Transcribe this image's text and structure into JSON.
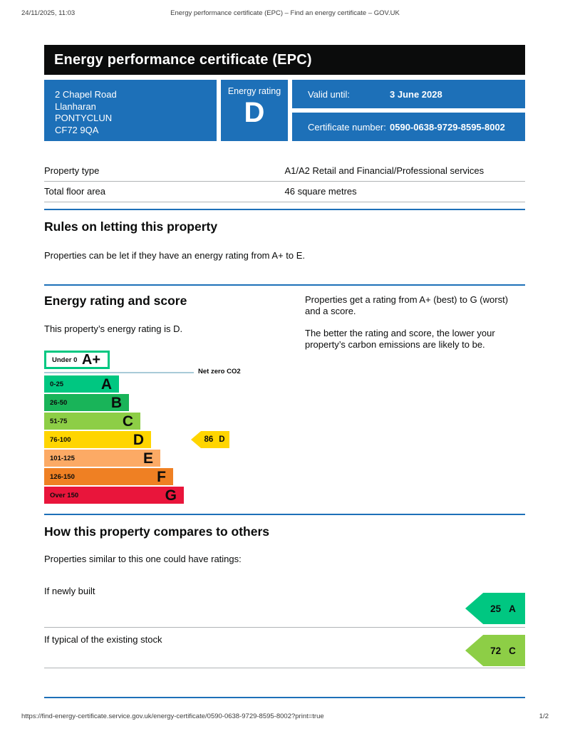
{
  "page": {
    "print_header": {
      "datetime": "24/11/2025, 11:03",
      "title": "Energy performance certificate (EPC) – Find an energy certificate – GOV.UK"
    },
    "print_footer": {
      "url": "https://find-energy-certificate.service.gov.uk/energy-certificate/0590-0638-9729-8595-8002?print=true",
      "page_number": "1/2"
    }
  },
  "banner": {
    "title": "Energy performance certificate (EPC)"
  },
  "summary": {
    "address_lines": [
      "2 Chapel Road",
      "Llanharan",
      "PONTYCLUN",
      "CF72 9QA"
    ],
    "energy_rating_label": "Energy rating",
    "energy_rating": "D",
    "valid_until_label": "Valid until:",
    "valid_until": "3 June 2028",
    "certificate_number_label": "Certificate number:",
    "certificate_number": "0590-0638-9729-8595-8002"
  },
  "property_details": {
    "rows": [
      {
        "label": "Property type",
        "value": "A1/A2 Retail and Financial/Professional services"
      },
      {
        "label": "Total floor area",
        "value": "46 square metres"
      }
    ]
  },
  "rules_section": {
    "heading": "Rules on letting this property",
    "body": "Properties can be let if they have an energy rating from A+ to E."
  },
  "rating_section": {
    "heading": "Energy rating and score",
    "property_rating_text": "This property’s energy rating is D.",
    "info_paragraphs": [
      "Properties get a rating from A+ (best) to G (worst) and a score.",
      "The better the rating and score, the lower your property’s carbon emissions are likely to be."
    ]
  },
  "chart_data": {
    "type": "bar",
    "subtype": "epc-energy-rating-scale",
    "title": "Energy rating and score",
    "net_zero_label": "Net zero CO2",
    "bands": [
      {
        "letter": "A+",
        "range": "Under 0",
        "color": "#ffffff",
        "border": "#00c781"
      },
      {
        "letter": "A",
        "range": "0-25",
        "color": "#00c781"
      },
      {
        "letter": "B",
        "range": "26-50",
        "color": "#19b459"
      },
      {
        "letter": "C",
        "range": "51-75",
        "color": "#8dce46"
      },
      {
        "letter": "D",
        "range": "76-100",
        "color": "#ffd500"
      },
      {
        "letter": "E",
        "range": "101-125",
        "color": "#fcaa65"
      },
      {
        "letter": "F",
        "range": "126-150",
        "color": "#ef8023"
      },
      {
        "letter": "G",
        "range": "Over 150",
        "color": "#e9153b"
      }
    ],
    "current": {
      "score": "86",
      "rating": "D",
      "color": "#ffd500"
    }
  },
  "compare_section": {
    "heading": "How this property compares to others",
    "intro": "Properties similar to this one could have ratings:",
    "rows": [
      {
        "label": "If newly built",
        "score": "25",
        "rating": "A",
        "color": "#00c781"
      },
      {
        "label": "If typical of the existing stock",
        "score": "72",
        "rating": "C",
        "color": "#8dce46"
      }
    ]
  },
  "colors": {
    "govuk_blue": "#1d70b8",
    "banner_background": "#0b0c0c",
    "divider_gray": "#b1b4b6",
    "net_zero_line": "#a8cbd8"
  }
}
